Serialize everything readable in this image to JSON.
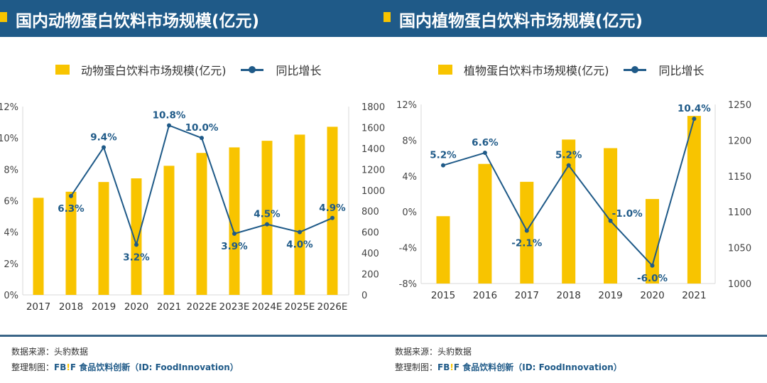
{
  "panels": [
    {
      "title": "国内动物蛋白饮料市场规模(亿元)",
      "legend_bar": "动物蛋白饮料市场规模(亿元)",
      "legend_line": "同比增长"
    },
    {
      "title": "国内植物蛋白饮料市场规模(亿元)",
      "legend_bar": "植物蛋白饮料市场规模(亿元)",
      "legend_line": "同比增长"
    }
  ],
  "footer": {
    "source": "数据来源：头豹数据",
    "maker_label": "整理制图：",
    "brand_a": "FB",
    "brand_bang": "!",
    "brand_b": "F",
    "brand_rest": " 食品饮料创新（ID: FoodInnovation）"
  },
  "colors": {
    "bar": "#f8c400",
    "line": "#1f5a88",
    "header": "#1f5a88"
  },
  "chart_data": [
    {
      "type": "bar+line",
      "categories": [
        "2017",
        "2018",
        "2019",
        "2020",
        "2021",
        "2022E",
        "2023E",
        "2024E",
        "2025E",
        "2026E"
      ],
      "series": [
        {
          "name": "动物蛋白饮料市场规模(亿元)",
          "type": "bar",
          "axis": "right",
          "values": [
            928,
            986,
            1079,
            1114,
            1234,
            1357,
            1410,
            1473,
            1532,
            1607
          ]
        },
        {
          "name": "同比增长",
          "type": "line",
          "axis": "left",
          "values": [
            null,
            6.3,
            9.4,
            3.2,
            10.8,
            10.0,
            3.9,
            4.5,
            4.0,
            4.9
          ],
          "labels": [
            "",
            "6.3%",
            "9.4%",
            "3.2%",
            "10.8%",
            "10.0%",
            "3.9%",
            "4.5%",
            "4.0%",
            "4.9%"
          ]
        }
      ],
      "left_axis": {
        "ylim": [
          0,
          12
        ],
        "ticks": [
          "0%",
          "2%",
          "4%",
          "6%",
          "8%",
          "10%",
          "12%"
        ]
      },
      "right_axis": {
        "ylim": [
          0,
          1800
        ],
        "ticks": [
          "0",
          "200",
          "400",
          "600",
          "800",
          "1000",
          "1200",
          "1400",
          "1600",
          "1800"
        ]
      },
      "grid": false,
      "legend": "top"
    },
    {
      "type": "bar+line",
      "categories": [
        "2015",
        "2016",
        "2017",
        "2018",
        "2019",
        "2020",
        "2021"
      ],
      "series": [
        {
          "name": "植物蛋白饮料市场规模(亿元)",
          "type": "bar",
          "axis": "right",
          "values": [
            1094,
            1167,
            1142,
            1201,
            1189,
            1118,
            1234
          ]
        },
        {
          "name": "同比增长",
          "type": "line",
          "axis": "left",
          "values": [
            5.2,
            6.6,
            -2.1,
            5.2,
            -1.0,
            -6.0,
            10.4
          ],
          "labels": [
            "5.2%",
            "6.6%",
            "-2.1%",
            "5.2%",
            "-1.0%",
            "-6.0%",
            "10.4%"
          ]
        }
      ],
      "left_axis": {
        "ylim": [
          -8,
          12
        ],
        "ticks": [
          "-8%",
          "-4%",
          "0%",
          "4%",
          "8%",
          "12%"
        ]
      },
      "right_axis": {
        "ylim": [
          1000,
          1250
        ],
        "ticks": [
          "1000",
          "1050",
          "1100",
          "1150",
          "1200",
          "1250"
        ]
      },
      "grid": false,
      "legend": "top"
    }
  ]
}
